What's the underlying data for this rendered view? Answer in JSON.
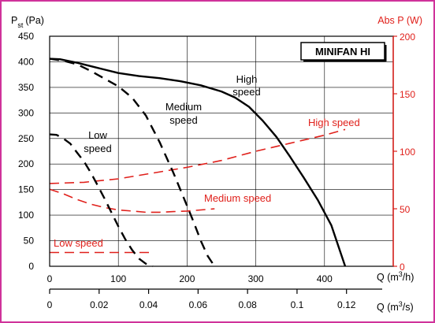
{
  "chart_data": {
    "type": "line",
    "title": "MINIFAN HI",
    "y_left_label": {
      "main": "P",
      "sub": "st",
      "unit": "(Pa)"
    },
    "y_right_label": "Abs P (W)",
    "x_label_top": {
      "main": "Q (m",
      "sup": "3",
      "tail": "/h)"
    },
    "x_label_bottom": {
      "main": "Q (m",
      "sup": "3",
      "tail": "/s)"
    },
    "y_left_lim": [
      0,
      450
    ],
    "y_left_ticks": [
      0,
      50,
      100,
      150,
      200,
      250,
      300,
      350,
      400,
      450
    ],
    "y_right_lim": [
      0,
      200
    ],
    "y_right_ticks": [
      0,
      50,
      100,
      150,
      200
    ],
    "x_lim": [
      0,
      500
    ],
    "x_ticks": [
      0,
      100,
      200,
      300,
      400
    ],
    "x2_ticks": [
      "0",
      "0.02",
      "0.04",
      "0.06",
      "0.08",
      "0.1",
      "0.12"
    ],
    "x2_tick_values": [
      0,
      0.02,
      0.04,
      0.06,
      0.08,
      0.1,
      0.12
    ],
    "grid": true,
    "pressure_series": [
      {
        "label": "High speed",
        "style": "solid",
        "color": "#000000",
        "x": [
          0,
          15,
          40,
          70,
          100,
          130,
          160,
          190,
          220,
          250,
          270,
          290,
          310,
          330,
          350,
          370,
          390,
          410,
          430
        ],
        "y": [
          406,
          405,
          398,
          388,
          378,
          372,
          368,
          362,
          354,
          342,
          330,
          312,
          285,
          253,
          214,
          173,
          130,
          80,
          0
        ]
      },
      {
        "label": "Medium speed",
        "style": "dashed",
        "color": "#000000",
        "x": [
          0,
          20,
          40,
          60,
          80,
          100,
          120,
          140,
          160,
          180,
          200,
          210,
          220,
          230,
          240
        ],
        "y": [
          406,
          402,
          395,
          382,
          367,
          352,
          330,
          295,
          243,
          183,
          118,
          85,
          50,
          20,
          0
        ]
      },
      {
        "label": "Low speed",
        "style": "dashed",
        "color": "#000000",
        "x": [
          0,
          10,
          20,
          30,
          40,
          50,
          60,
          70,
          80,
          90,
          100,
          110,
          120,
          130,
          140,
          150
        ],
        "y": [
          258,
          257,
          250,
          240,
          222,
          205,
          183,
          158,
          132,
          105,
          78,
          53,
          32,
          15,
          5,
          0
        ]
      }
    ],
    "power_series": [
      {
        "label": "High speed",
        "style": "dashed",
        "color": "#e0201b",
        "x": [
          0,
          50,
          100,
          150,
          200,
          250,
          300,
          350,
          400,
          430
        ],
        "y": [
          72,
          73,
          76,
          81,
          86,
          92,
          100,
          107,
          114,
          119
        ]
      },
      {
        "label": "Medium speed",
        "style": "dashed",
        "color": "#e0201b",
        "x": [
          0,
          20,
          40,
          60,
          80,
          100,
          120,
          140,
          160,
          180,
          200,
          220,
          240
        ],
        "y": [
          67,
          63,
          58,
          54,
          51,
          49,
          48,
          47,
          47,
          47.5,
          48,
          49,
          50
        ]
      },
      {
        "label": "Low speed",
        "style": "dashed",
        "color": "#e0201b",
        "x": [
          0,
          50,
          100,
          150
        ],
        "y": [
          12,
          12,
          12,
          12
        ]
      }
    ],
    "annotations": {
      "high": [
        "High",
        "speed"
      ],
      "medium": [
        "Medium",
        "speed"
      ],
      "low": [
        "Low",
        "speed"
      ],
      "power_high": "High speed",
      "power_medium": "Medium speed",
      "power_low": "Low speed"
    }
  },
  "colors": {
    "frame": "#d0329a",
    "axis_red": "#e0201b",
    "grid": "#000000"
  }
}
